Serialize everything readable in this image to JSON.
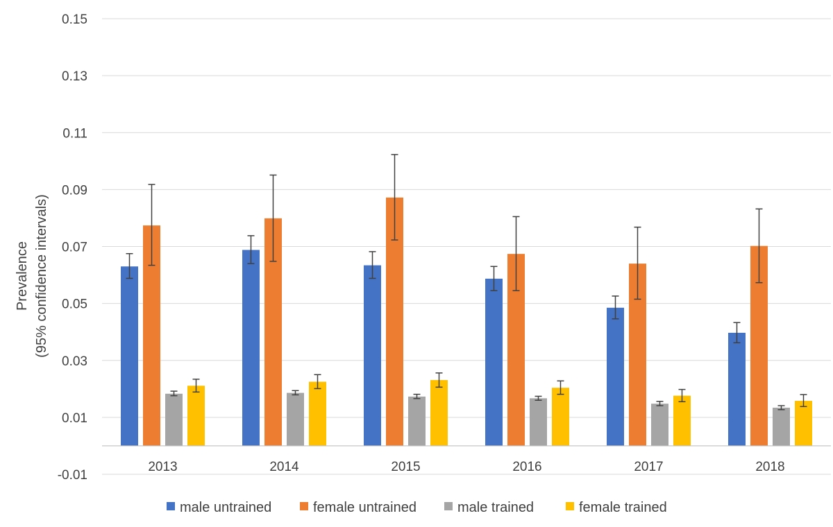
{
  "chart_data": {
    "type": "bar",
    "title": "",
    "xlabel": "",
    "ylabel_lines": [
      "Prevalence",
      "(95% confidence intervals)"
    ],
    "categories": [
      "2013",
      "2014",
      "2015",
      "2016",
      "2017",
      "2018"
    ],
    "yticks": [
      -0.01,
      0.01,
      0.03,
      0.05,
      0.07,
      0.09,
      0.11,
      0.13,
      0.15
    ],
    "ytick_labels": [
      "-0.01",
      "0.01",
      "0.03",
      "0.05",
      "0.07",
      "0.09",
      "0.11",
      "0.13",
      "0.15"
    ],
    "ylim": [
      -0.01,
      0.15
    ],
    "grid": true,
    "legend_position": "bottom",
    "error_bars": "95% confidence intervals",
    "series": [
      {
        "name": "male untrained",
        "color": "#4472C4",
        "values": [
          0.063,
          0.0688,
          0.0634,
          0.0587,
          0.0485,
          0.0397
        ],
        "ci_low": [
          0.0588,
          0.064,
          0.0588,
          0.0545,
          0.0446,
          0.0362
        ],
        "ci_high": [
          0.0675,
          0.0738,
          0.0682,
          0.063,
          0.0526,
          0.0433
        ]
      },
      {
        "name": "female untrained",
        "color": "#ED7D31",
        "values": [
          0.0774,
          0.0799,
          0.0872,
          0.0674,
          0.064,
          0.0702
        ],
        "ci_low": [
          0.0634,
          0.0648,
          0.0723,
          0.0545,
          0.0515,
          0.0573
        ],
        "ci_high": [
          0.0918,
          0.0951,
          0.1023,
          0.0805,
          0.0768,
          0.0832
        ]
      },
      {
        "name": "male trained",
        "color": "#A5A5A5",
        "values": [
          0.0183,
          0.0186,
          0.0173,
          0.0167,
          0.0148,
          0.0134
        ],
        "ci_low": [
          0.0176,
          0.0179,
          0.0166,
          0.016,
          0.0141,
          0.0127
        ],
        "ci_high": [
          0.0192,
          0.0194,
          0.0181,
          0.0174,
          0.0156,
          0.0141
        ]
      },
      {
        "name": "female trained",
        "color": "#FFC000",
        "values": [
          0.0211,
          0.0225,
          0.0231,
          0.0204,
          0.0176,
          0.0158
        ],
        "ci_low": [
          0.0189,
          0.0201,
          0.0206,
          0.0181,
          0.0155,
          0.0138
        ],
        "ci_high": [
          0.0234,
          0.025,
          0.0256,
          0.0228,
          0.0198,
          0.018
        ]
      }
    ]
  }
}
